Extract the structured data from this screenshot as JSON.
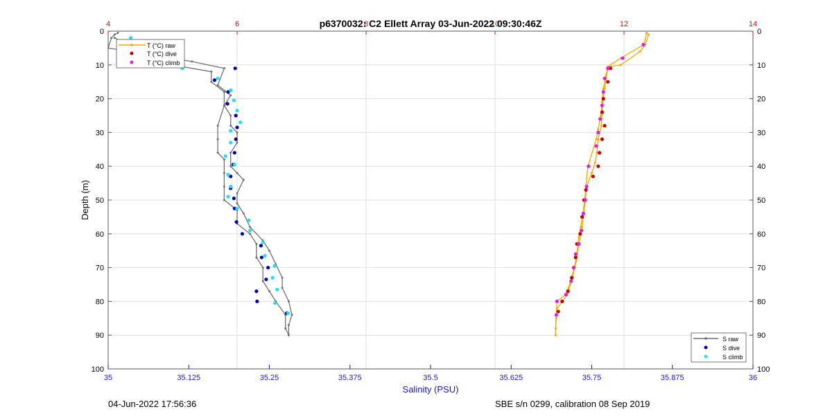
{
  "footer": {
    "left": "04-Jun-2022 17:56:36",
    "right": "SBE s/n 0299, calibration 08 Sep 2019"
  },
  "colors": {
    "temp_axis": "#d01010",
    "sal_axis": "#1a1aaa",
    "grid": "#e0e0e0",
    "t_raw": "#f0a800",
    "t_dive": "#c00000",
    "t_climb": "#e020e0",
    "s_raw": "#707070",
    "s_dive": "#0000b0",
    "s_climb": "#20e0f0"
  },
  "chart_data": {
    "type": "line",
    "title": "p6370032: C2 Ellett Array 03-Jun-2022 09:30:46Z",
    "ylabel": "Depth (m)",
    "xlabel_bottom": "Salinity (PSU)",
    "xlabel_top": "",
    "ylim": [
      0,
      100
    ],
    "y_reversed": true,
    "y_ticks": [
      0,
      10,
      20,
      30,
      40,
      50,
      60,
      70,
      80,
      90,
      100
    ],
    "x_bottom_range": [
      35,
      36
    ],
    "x_bottom_ticks": [
      "35",
      "35.125",
      "35.25",
      "35.375",
      "35.5",
      "35.625",
      "35.75",
      "35.875",
      "36"
    ],
    "x_bottom_tick_values": [
      35,
      35.125,
      35.25,
      35.375,
      35.5,
      35.625,
      35.75,
      35.875,
      36
    ],
    "x_top_range": [
      4,
      14
    ],
    "x_top_ticks": [
      "4",
      "6",
      "8",
      "10",
      "12",
      "14"
    ],
    "x_top_tick_values": [
      4,
      6,
      8,
      10,
      12,
      14
    ],
    "grid": true,
    "legend_temperature": {
      "placement": "top-left",
      "entries": [
        "T (°C) raw",
        "T (°C) dive",
        "T (°C) climb"
      ]
    },
    "legend_salinity": {
      "placement": "bottom-right",
      "entries": [
        "S raw",
        "S dive",
        "S climb"
      ]
    },
    "series": [
      {
        "name": "T (°C) raw",
        "axis": "temperature",
        "style": "line",
        "points": [
          [
            12.35,
            0.5
          ],
          [
            12.38,
            1
          ],
          [
            12.33,
            4
          ],
          [
            12.25,
            6
          ],
          [
            11.95,
            10
          ],
          [
            11.78,
            10.5
          ],
          [
            11.75,
            11
          ],
          [
            11.72,
            14
          ],
          [
            11.7,
            17
          ],
          [
            11.68,
            20
          ],
          [
            11.66,
            24
          ],
          [
            11.65,
            28
          ],
          [
            11.6,
            32
          ],
          [
            11.58,
            36
          ],
          [
            11.55,
            39
          ],
          [
            11.5,
            42
          ],
          [
            11.42,
            46
          ],
          [
            11.4,
            50
          ],
          [
            11.38,
            54
          ],
          [
            11.35,
            58
          ],
          [
            11.3,
            63
          ],
          [
            11.26,
            68
          ],
          [
            11.2,
            73
          ],
          [
            11.12,
            78
          ],
          [
            11.05,
            80
          ],
          [
            10.96,
            82
          ],
          [
            10.95,
            85
          ],
          [
            10.94,
            88
          ],
          [
            10.94,
            90
          ]
        ]
      },
      {
        "name": "T (°C) raw",
        "axis": "temperature",
        "style": "line",
        "points": [
          [
            12.35,
            0.5
          ],
          [
            12.31,
            4
          ],
          [
            11.95,
            8
          ],
          [
            11.75,
            10.5
          ],
          [
            11.72,
            13
          ],
          [
            11.68,
            17
          ],
          [
            11.66,
            21
          ],
          [
            11.64,
            25
          ],
          [
            11.6,
            29
          ],
          [
            11.57,
            32
          ],
          [
            11.44,
            40
          ],
          [
            11.41,
            46
          ],
          [
            11.39,
            50
          ],
          [
            11.36,
            54
          ],
          [
            11.33,
            58
          ],
          [
            11.3,
            61
          ],
          [
            11.27,
            66
          ],
          [
            11.23,
            70
          ],
          [
            11.14,
            76
          ],
          [
            11.1,
            78
          ],
          [
            10.96,
            80
          ],
          [
            10.95,
            84
          ],
          [
            10.94,
            88
          ],
          [
            10.94,
            90
          ]
        ]
      },
      {
        "name": "T (°C) dive",
        "axis": "temperature",
        "style": "points",
        "points": [
          [
            11.79,
            11
          ],
          [
            11.75,
            15
          ],
          [
            11.68,
            20
          ],
          [
            11.66,
            24
          ],
          [
            11.7,
            28
          ],
          [
            11.66,
            32
          ],
          [
            11.62,
            36
          ],
          [
            11.6,
            40
          ],
          [
            11.52,
            43
          ],
          [
            11.41,
            47
          ],
          [
            11.38,
            50
          ],
          [
            11.35,
            55
          ],
          [
            11.32,
            60
          ],
          [
            11.27,
            63
          ],
          [
            11.25,
            67
          ],
          [
            11.22,
            70
          ],
          [
            11.19,
            73
          ],
          [
            11.13,
            77
          ],
          [
            11.04,
            80
          ],
          [
            10.98,
            83
          ]
        ]
      },
      {
        "name": "T (°C) climb",
        "axis": "temperature",
        "style": "points",
        "points": [
          [
            12.3,
            4
          ],
          [
            11.98,
            8
          ],
          [
            11.75,
            11
          ],
          [
            11.7,
            14
          ],
          [
            11.68,
            18
          ],
          [
            11.66,
            22
          ],
          [
            11.63,
            26
          ],
          [
            11.6,
            30
          ],
          [
            11.57,
            34
          ],
          [
            11.45,
            40
          ],
          [
            11.42,
            46
          ],
          [
            11.4,
            50
          ],
          [
            11.37,
            54
          ],
          [
            11.34,
            59
          ],
          [
            11.3,
            63
          ],
          [
            11.25,
            66
          ],
          [
            11.22,
            70
          ],
          [
            11.18,
            74
          ],
          [
            11.1,
            78
          ],
          [
            10.96,
            80
          ],
          [
            10.95,
            84
          ]
        ]
      },
      {
        "name": "S raw",
        "axis": "salinity",
        "style": "line",
        "points": [
          [
            35.015,
            0.5
          ],
          [
            35.01,
            1
          ],
          [
            35.005,
            2
          ],
          [
            35.0,
            5
          ],
          [
            35.13,
            9
          ],
          [
            35.18,
            11
          ],
          [
            35.17,
            16
          ],
          [
            35.19,
            19
          ],
          [
            35.18,
            22
          ],
          [
            35.19,
            25
          ],
          [
            35.19,
            28
          ],
          [
            35.2,
            30
          ],
          [
            35.2,
            33
          ],
          [
            35.19,
            36
          ],
          [
            35.19,
            40
          ],
          [
            35.2,
            42
          ],
          [
            35.21,
            44
          ],
          [
            35.2,
            48
          ],
          [
            35.2,
            51
          ],
          [
            35.21,
            54
          ],
          [
            35.22,
            58
          ],
          [
            35.24,
            62
          ],
          [
            35.25,
            65
          ],
          [
            35.26,
            69
          ],
          [
            35.27,
            73
          ],
          [
            35.27,
            76
          ],
          [
            35.28,
            80
          ],
          [
            35.285,
            84
          ],
          [
            35.28,
            87
          ],
          [
            35.28,
            90
          ]
        ]
      },
      {
        "name": "S raw",
        "axis": "salinity",
        "style": "line",
        "points": [
          [
            35.01,
            2
          ],
          [
            35.1,
            10
          ],
          [
            35.16,
            12
          ],
          [
            35.16,
            15
          ],
          [
            35.18,
            18
          ],
          [
            35.18,
            22
          ],
          [
            35.17,
            28
          ],
          [
            35.17,
            32
          ],
          [
            35.17,
            36
          ],
          [
            35.18,
            38
          ],
          [
            35.18,
            42
          ],
          [
            35.18,
            46
          ],
          [
            35.18,
            50
          ],
          [
            35.2,
            53
          ],
          [
            35.2,
            57
          ],
          [
            35.22,
            60
          ],
          [
            35.23,
            63
          ],
          [
            35.23,
            67
          ],
          [
            35.24,
            70
          ],
          [
            35.24,
            74
          ],
          [
            35.25,
            77
          ],
          [
            35.26,
            80
          ],
          [
            35.275,
            84
          ],
          [
            35.275,
            88
          ],
          [
            35.28,
            90
          ]
        ]
      },
      {
        "name": "S dive",
        "axis": "salinity",
        "style": "points",
        "points": [
          [
            35.197,
            11
          ],
          [
            35.165,
            14.5
          ],
          [
            35.186,
            18
          ],
          [
            35.185,
            21.5
          ],
          [
            35.198,
            25
          ],
          [
            35.2,
            28.5
          ],
          [
            35.198,
            32
          ],
          [
            35.196,
            36
          ],
          [
            35.194,
            39.5
          ],
          [
            35.19,
            43
          ],
          [
            35.19,
            46.5
          ],
          [
            35.195,
            49.5
          ],
          [
            35.196,
            52.5
          ],
          [
            35.199,
            56.5
          ],
          [
            35.208,
            60
          ],
          [
            35.237,
            63.5
          ],
          [
            35.238,
            67
          ],
          [
            35.248,
            70
          ],
          [
            35.245,
            73.5
          ],
          [
            35.23,
            77
          ],
          [
            35.231,
            80
          ],
          [
            35.277,
            83.5
          ]
        ]
      },
      {
        "name": "S climb",
        "axis": "salinity",
        "style": "points",
        "points": [
          [
            35.035,
            2
          ],
          [
            35.065,
            7
          ],
          [
            35.115,
            11
          ],
          [
            35.17,
            14
          ],
          [
            35.19,
            17.5
          ],
          [
            35.195,
            20.5
          ],
          [
            35.2,
            23.5
          ],
          [
            35.205,
            27
          ],
          [
            35.19,
            29.5
          ],
          [
            35.19,
            33
          ],
          [
            35.182,
            37
          ],
          [
            35.196,
            39.5
          ],
          [
            35.186,
            42.5
          ],
          [
            35.19,
            46
          ],
          [
            35.186,
            49
          ],
          [
            35.2,
            52.5
          ],
          [
            35.218,
            56
          ],
          [
            35.22,
            59
          ],
          [
            35.24,
            62.5
          ],
          [
            35.243,
            66.5
          ],
          [
            35.258,
            69.5
          ],
          [
            35.255,
            73
          ],
          [
            35.262,
            76.5
          ],
          [
            35.259,
            80.5
          ],
          [
            35.279,
            83.5
          ]
        ]
      }
    ]
  }
}
